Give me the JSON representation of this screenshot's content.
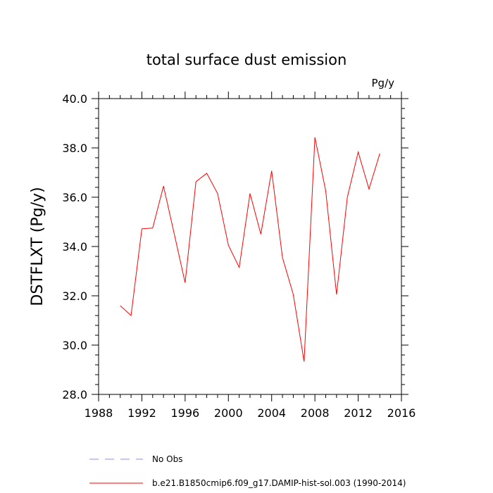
{
  "chart_data": {
    "type": "line",
    "title": "total surface dust emission",
    "units_label": "Pg/y",
    "ylabel": "DSTFLXT  (Pg/y)",
    "xlabel": "",
    "xlim": [
      1988,
      2016
    ],
    "ylim": [
      28.0,
      40.0
    ],
    "x_ticks": [
      "1988",
      "1992",
      "1996",
      "2000",
      "2004",
      "2008",
      "2012",
      "2016"
    ],
    "y_ticks": [
      "28.0",
      "30.0",
      "32.0",
      "34.0",
      "36.0",
      "38.0",
      "40.0"
    ],
    "grid": false,
    "series": [
      {
        "name": "b.e21.B1850cmip6.f09_g17.DAMIP-hist-sol.003 (1990-2014)",
        "color": "#ff0000",
        "x": [
          1990,
          1991,
          1992,
          1993,
          1994,
          1995,
          1996,
          1997,
          1998,
          1999,
          2000,
          2001,
          2002,
          2003,
          2004,
          2005,
          2006,
          2007,
          2008,
          2009,
          2010,
          2011,
          2012,
          2013,
          2014
        ],
        "values": [
          31.6,
          31.2,
          34.72,
          34.75,
          36.45,
          34.5,
          32.53,
          36.63,
          36.97,
          36.15,
          34.05,
          33.15,
          36.15,
          34.5,
          37.07,
          33.55,
          32.05,
          29.33,
          38.43,
          36.25,
          32.05,
          36.0,
          37.83,
          36.33,
          37.77
        ]
      }
    ],
    "legend": [
      {
        "label": "No Obs",
        "color": "#8c8cff",
        "style": "dashed"
      },
      {
        "label": "b.e21.B1850cmip6.f09_g17.DAMIP-hist-sol.003 (1990-2014)",
        "color": "#ff0000",
        "style": "solid"
      }
    ],
    "legend_position": "bottom"
  }
}
